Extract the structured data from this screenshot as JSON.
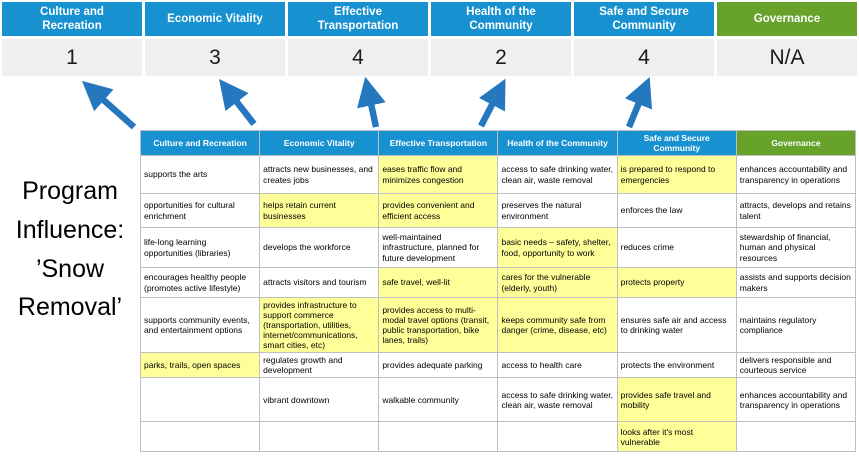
{
  "title": "Program Influence: ’Snow Removal’",
  "colors": {
    "header_blue": "#1791d0",
    "header_green": "#67a22a",
    "highlight_yellow": "#ffff99",
    "arrow_blue": "#2577be",
    "score_band": "#efefef",
    "table_border": "#bfbfbf"
  },
  "scorecard": {
    "columns": [
      {
        "label": "Culture and Recreation",
        "score": "1",
        "theme": "blue"
      },
      {
        "label": "Economic Vitality",
        "score": "3",
        "theme": "blue"
      },
      {
        "label": "Effective Transportation",
        "score": "4",
        "theme": "blue"
      },
      {
        "label": "Health of the Community",
        "score": "2",
        "theme": "blue"
      },
      {
        "label": "Safe and Secure Community",
        "score": "4",
        "theme": "blue"
      },
      {
        "label": "Governance",
        "score": "N/A",
        "theme": "green"
      }
    ]
  },
  "table": {
    "headers": [
      {
        "label": "Culture and Recreation",
        "theme": "blue"
      },
      {
        "label": "Economic Vitality",
        "theme": "blue"
      },
      {
        "label": "Effective Transportation",
        "theme": "blue"
      },
      {
        "label": "Health of the Community",
        "theme": "blue"
      },
      {
        "label": "Safe and Secure Community",
        "theme": "blue"
      },
      {
        "label": "Governance",
        "theme": "green"
      }
    ],
    "rows": [
      [
        {
          "text": "supports the arts",
          "highlight": false
        },
        {
          "text": "attracts new businesses, and creates jobs",
          "highlight": false
        },
        {
          "text": "eases traffic flow and minimizes congestion",
          "highlight": true
        },
        {
          "text": "access to safe drinking water, clean air, waste removal",
          "highlight": false
        },
        {
          "text": "is prepared to respond to emergencies",
          "highlight": true
        },
        {
          "text": "enhances accountability and transparency in operations",
          "highlight": false
        }
      ],
      [
        {
          "text": "opportunities for cultural enrichment",
          "highlight": false
        },
        {
          "text": "helps retain current businesses",
          "highlight": true
        },
        {
          "text": "provides convenient and efficient access",
          "highlight": true
        },
        {
          "text": "preserves the natural environment",
          "highlight": false
        },
        {
          "text": "enforces the law",
          "highlight": false
        },
        {
          "text": "attracts, develops and retains talent",
          "highlight": false
        }
      ],
      [
        {
          "text": "life-long learning opportunities (libraries)",
          "highlight": false
        },
        {
          "text": "develops the workforce",
          "highlight": false
        },
        {
          "text": "well-maintained infrastructure, planned for future development",
          "highlight": false
        },
        {
          "text": "basic needs – safety, shelter, food, opportunity to work",
          "highlight": true
        },
        {
          "text": "reduces crime",
          "highlight": false
        },
        {
          "text": "stewardship of financial, human and physical resources",
          "highlight": false
        }
      ],
      [
        {
          "text": "encourages healthy people (promotes active lifestyle)",
          "highlight": false
        },
        {
          "text": "attracts visitors and tourism",
          "highlight": false
        },
        {
          "text": "safe travel, well-lit",
          "highlight": true
        },
        {
          "text": "cares for the vulnerable (elderly, youth)",
          "highlight": true
        },
        {
          "text": "protects property",
          "highlight": true
        },
        {
          "text": "assists and supports decision makers",
          "highlight": false
        }
      ],
      [
        {
          "text": "supports community events, and entertainment options",
          "highlight": false
        },
        {
          "text": "provides infrastructure to support commerce (transportation, utilities, internet/communications, smart cities, etc)",
          "highlight": true
        },
        {
          "text": "provides access to multi-modal travel options (transit, public transportation, bike lanes, trails)",
          "highlight": true
        },
        {
          "text": "keeps community safe from danger (crime, disease, etc)",
          "highlight": true
        },
        {
          "text": "ensures safe air and access to drinking water",
          "highlight": false
        },
        {
          "text": "maintains regulatory compliance",
          "highlight": false
        }
      ],
      [
        {
          "text": "parks, trails, open spaces",
          "highlight": true
        },
        {
          "text": "regulates growth and development",
          "highlight": false
        },
        {
          "text": "provides adequate parking",
          "highlight": false
        },
        {
          "text": "access to health care",
          "highlight": false
        },
        {
          "text": "protects the environment",
          "highlight": false
        },
        {
          "text": "delivers responsible and courteous service",
          "highlight": false
        }
      ],
      [
        {
          "text": "",
          "highlight": false
        },
        {
          "text": "vibrant downtown",
          "highlight": false
        },
        {
          "text": "walkable community",
          "highlight": false
        },
        {
          "text": "access to safe drinking water, clean air, waste removal",
          "highlight": false
        },
        {
          "text": "provides safe travel and mobility",
          "highlight": true
        },
        {
          "text": "enhances accountability and transparency in operations",
          "highlight": false
        }
      ],
      [
        {
          "text": "",
          "highlight": false
        },
        {
          "text": "",
          "highlight": false
        },
        {
          "text": "",
          "highlight": false
        },
        {
          "text": "",
          "highlight": false
        },
        {
          "text": "looks after it's most vulnerable",
          "highlight": true
        },
        {
          "text": "",
          "highlight": false
        }
      ]
    ]
  }
}
